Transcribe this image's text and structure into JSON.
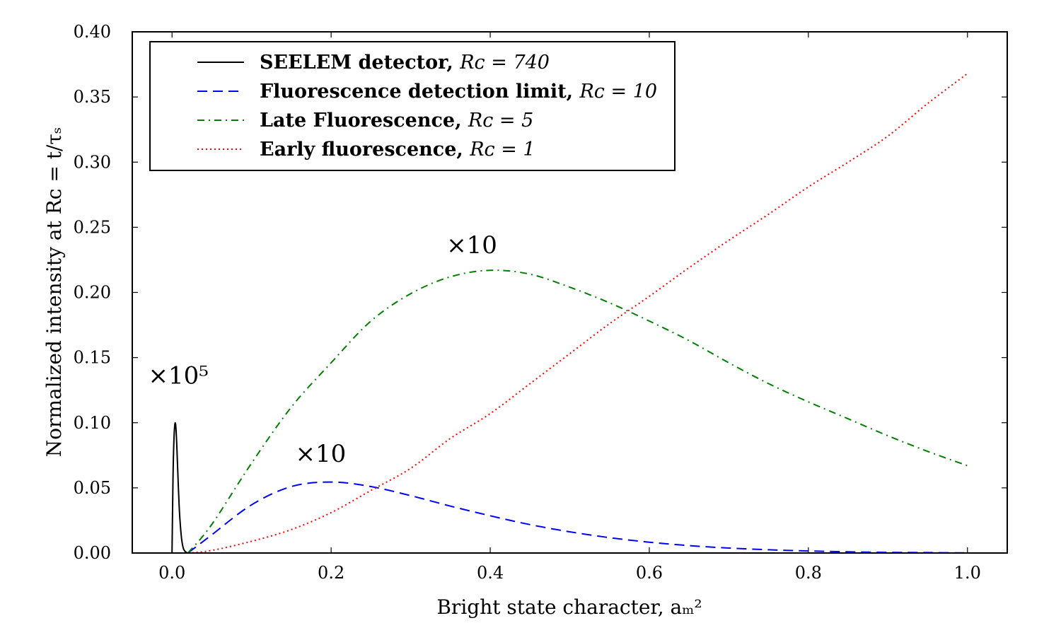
{
  "chart_data": {
    "type": "line",
    "xlabel": "Bright state character, aₘ²",
    "ylabel": "Normalized intensity at Rᴄ = t/τₛ",
    "xlim": [
      -0.05,
      1.05
    ],
    "ylim": [
      0.0,
      0.4
    ],
    "x_ticks": [
      "0.0",
      "0.2",
      "0.4",
      "0.6",
      "0.8",
      "1.0"
    ],
    "x_tick_values": [
      0.0,
      0.2,
      0.4,
      0.6,
      0.8,
      1.0
    ],
    "y_ticks": [
      "0.00",
      "0.05",
      "0.10",
      "0.15",
      "0.20",
      "0.25",
      "0.30",
      "0.35",
      "0.40"
    ],
    "y_tick_values": [
      0.0,
      0.05,
      0.1,
      0.15,
      0.2,
      0.25,
      0.3,
      0.35,
      0.4
    ],
    "grid": false,
    "legend_position": "top-left",
    "series": [
      {
        "name": "SEELEM detector,",
        "math": "Rᴄ = 740",
        "color": "#000000",
        "style": "solid",
        "x": [
          0.0,
          0.001,
          0.002,
          0.003,
          0.004,
          0.005,
          0.006,
          0.007,
          0.008,
          0.009,
          0.01,
          0.012,
          0.014,
          0.016,
          0.018,
          0.02
        ],
        "y": [
          0.0,
          0.05,
          0.08,
          0.095,
          0.1,
          0.095,
          0.082,
          0.066,
          0.05,
          0.036,
          0.025,
          0.011,
          0.004,
          0.0015,
          0.0005,
          0.0
        ]
      },
      {
        "name": "Fluorescence detection limit,",
        "math": "Rᴄ = 10",
        "color": "#0000ff",
        "style": "dashed",
        "x": [
          0.02,
          0.05,
          0.1,
          0.15,
          0.2,
          0.25,
          0.3,
          0.35,
          0.4,
          0.45,
          0.5,
          0.55,
          0.6,
          0.65,
          0.7,
          0.75,
          0.8,
          0.85,
          0.9,
          0.95,
          1.0
        ],
        "y": [
          0.0,
          0.014,
          0.037,
          0.051,
          0.0545,
          0.051,
          0.044,
          0.036,
          0.0286,
          0.0218,
          0.0163,
          0.0118,
          0.0083,
          0.0057,
          0.0038,
          0.0025,
          0.0016,
          0.0009,
          0.0005,
          0.0003,
          0.0001
        ]
      },
      {
        "name": "Late Fluorescence,",
        "math": "Rᴄ = 5",
        "color": "#008000",
        "style": "dashdot",
        "x": [
          0.02,
          0.05,
          0.1,
          0.15,
          0.2,
          0.25,
          0.3,
          0.35,
          0.4,
          0.45,
          0.5,
          0.55,
          0.6,
          0.65,
          0.7,
          0.75,
          0.8,
          0.85,
          0.9,
          0.95,
          1.0
        ],
        "y": [
          0.0,
          0.022,
          0.069,
          0.112,
          0.146,
          0.178,
          0.199,
          0.212,
          0.217,
          0.214,
          0.204,
          0.192,
          0.178,
          0.163,
          0.146,
          0.13,
          0.116,
          0.103,
          0.09,
          0.078,
          0.067
        ]
      },
      {
        "name": "Early fluorescence,",
        "math": "Rᴄ = 1",
        "color": "#ff0000",
        "style": "dotted",
        "x": [
          0.02,
          0.05,
          0.1,
          0.15,
          0.2,
          0.25,
          0.3,
          0.35,
          0.4,
          0.45,
          0.5,
          0.55,
          0.6,
          0.65,
          0.7,
          0.75,
          0.8,
          0.85,
          0.9,
          0.95,
          1.0
        ],
        "y": [
          0.0,
          0.002,
          0.009,
          0.018,
          0.031,
          0.048,
          0.065,
          0.088,
          0.107,
          0.13,
          0.153,
          0.176,
          0.197,
          0.219,
          0.24,
          0.26,
          0.281,
          0.3,
          0.32,
          0.345,
          0.368
        ]
      }
    ],
    "annotations": [
      {
        "text": "×10⁵",
        "x": -0.03,
        "y": 0.13
      },
      {
        "text": "×10",
        "x": 0.155,
        "y": 0.07
      },
      {
        "text": "×10",
        "x": 0.345,
        "y": 0.23
      }
    ]
  }
}
